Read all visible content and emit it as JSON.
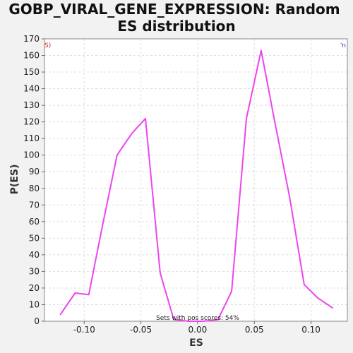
{
  "chart_data": {
    "type": "line",
    "title_lines": [
      "GOBP_VIRAL_GENE_EXPRESSION: Random",
      "ES distribution"
    ],
    "xlabel": "ES",
    "ylabel": "P(ES)",
    "xlim": [
      -0.135,
      0.132
    ],
    "ylim": [
      0,
      170
    ],
    "x_ticks": [
      -0.1,
      -0.05,
      0.0,
      0.05,
      0.1
    ],
    "x_tick_labels": [
      "-0.10",
      "-0.05",
      "0.00",
      "0.05",
      "0.10"
    ],
    "y_ticks": [
      0,
      10,
      20,
      30,
      40,
      50,
      60,
      70,
      80,
      90,
      100,
      110,
      120,
      130,
      140,
      150,
      160,
      170
    ],
    "grid": true,
    "annotation": "Sets with pos scores: 54%",
    "left_edge_note": "S)",
    "right_edge_note": "'n",
    "colors": {
      "line": "#ee44ee",
      "left_note": "#cc2222",
      "right_note": "#3333aa",
      "grid": "#dddddd",
      "plot_bg": "#ffffff",
      "page_bg": "#f2f2f2"
    },
    "series": [
      {
        "x": [
          -0.121,
          -0.108,
          -0.096,
          -0.084,
          -0.071,
          -0.058,
          -0.046,
          -0.033,
          -0.021,
          -0.008,
          0.005,
          0.018,
          0.03,
          0.043,
          0.056,
          0.068,
          0.081,
          0.094,
          0.106,
          0.119
        ],
        "y": [
          4,
          17,
          16,
          57,
          100,
          113,
          122,
          29,
          1,
          0,
          0,
          1,
          18,
          122,
          163,
          120,
          75,
          22,
          14,
          8
        ]
      }
    ]
  }
}
